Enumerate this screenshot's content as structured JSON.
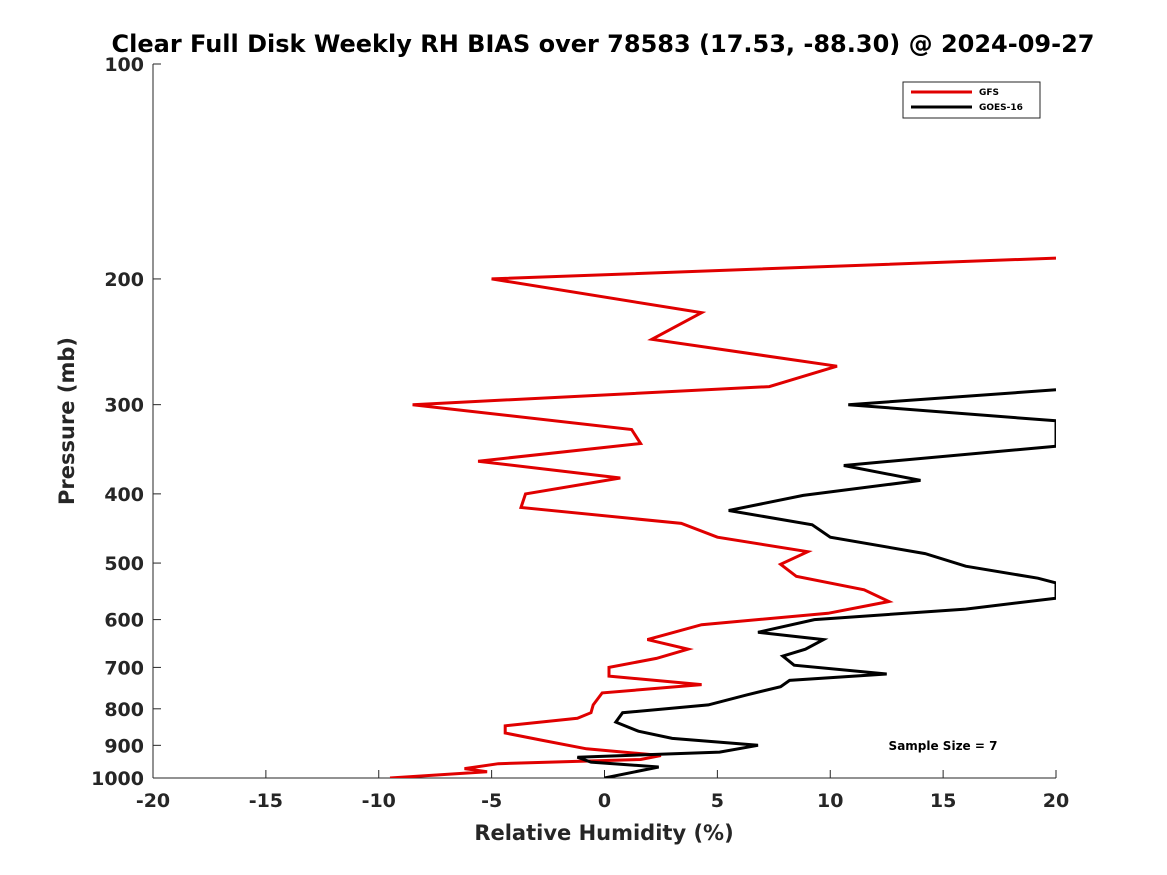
{
  "chart_data": {
    "type": "line",
    "title": "Clear Full Disk Weekly RH BIAS over 78583 (17.53, -88.30) @ 2024-09-27",
    "xlabel": "Relative Humidity (%)",
    "ylabel": "Pressure (mb)",
    "xlim": [
      -20,
      20
    ],
    "ylim": [
      100,
      1000
    ],
    "yscale": "log",
    "yreversed": true,
    "grid": false,
    "legend_position": "top-right",
    "x_ticks": [
      -20,
      -15,
      -10,
      -5,
      0,
      5,
      10,
      15,
      20
    ],
    "y_ticks": [
      100,
      200,
      300,
      400,
      500,
      600,
      700,
      800,
      900,
      1000
    ],
    "annotation": "Sample Size = 7",
    "series": [
      {
        "name": "GFS",
        "color": "#e00000",
        "points": [
          [
            20,
            187
          ],
          [
            -5,
            200
          ],
          [
            4.3,
            223
          ],
          [
            2.1,
            243
          ],
          [
            10.3,
            265
          ],
          [
            7.3,
            283
          ],
          [
            -8.5,
            300
          ],
          [
            1.2,
            325
          ],
          [
            1.6,
            340
          ],
          [
            -5.6,
            360
          ],
          [
            0.7,
            380
          ],
          [
            -3.5,
            400
          ],
          [
            -3.7,
            418
          ],
          [
            3.4,
            440
          ],
          [
            5.0,
            460
          ],
          [
            9.0,
            482
          ],
          [
            7.8,
            502
          ],
          [
            8.5,
            522
          ],
          [
            11.5,
            545
          ],
          [
            12.6,
            566
          ],
          [
            9.9,
            588
          ],
          [
            4.3,
            610
          ],
          [
            1.9,
            640
          ],
          [
            3.7,
            660
          ],
          [
            2.3,
            680
          ],
          [
            0.2,
            700
          ],
          [
            0.2,
            720
          ],
          [
            4.3,
            740
          ],
          [
            -0.1,
            760
          ],
          [
            -0.5,
            790
          ],
          [
            -0.6,
            810
          ],
          [
            -1.2,
            825
          ],
          [
            -4.4,
            845
          ],
          [
            -4.4,
            865
          ],
          [
            -2.8,
            885
          ],
          [
            -0.8,
            910
          ],
          [
            2.5,
            930
          ],
          [
            1.6,
            942
          ],
          [
            -4.7,
            955
          ],
          [
            -6.2,
            970
          ],
          [
            -5.2,
            980
          ],
          [
            -9.5,
            1000
          ]
        ]
      },
      {
        "name": "GOES-16",
        "color": "#000000",
        "points": [
          [
            20,
            286
          ],
          [
            10.8,
            300
          ],
          [
            20,
            316
          ],
          [
            20,
            343
          ],
          [
            10.6,
            365
          ],
          [
            14,
            383
          ],
          [
            8.8,
            402
          ],
          [
            5.5,
            422
          ],
          [
            9.2,
            442
          ],
          [
            10,
            460
          ],
          [
            14.2,
            485
          ],
          [
            16,
            505
          ],
          [
            19.2,
            525
          ],
          [
            20,
            533
          ],
          [
            20,
            560
          ],
          [
            16,
            580
          ],
          [
            9.3,
            600
          ],
          [
            6.8,
            625
          ],
          [
            9.7,
            640
          ],
          [
            8.9,
            660
          ],
          [
            7.9,
            675
          ],
          [
            8.4,
            695
          ],
          [
            12.5,
            715
          ],
          [
            8.2,
            730
          ],
          [
            7.8,
            745
          ],
          [
            6.3,
            765
          ],
          [
            4.6,
            790
          ],
          [
            0.8,
            810
          ],
          [
            0.5,
            835
          ],
          [
            1.5,
            860
          ],
          [
            3,
            880
          ],
          [
            6.8,
            900
          ],
          [
            5.1,
            920
          ],
          [
            -1.2,
            935
          ],
          [
            -0.6,
            950
          ],
          [
            2.4,
            965
          ],
          [
            0,
            1000
          ]
        ]
      }
    ]
  }
}
